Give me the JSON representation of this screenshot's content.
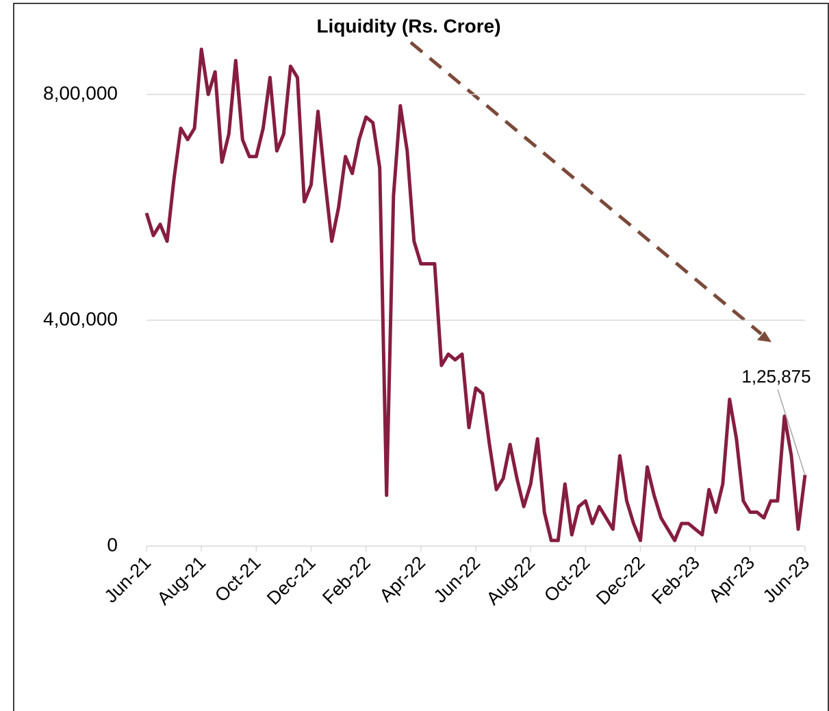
{
  "chart_data": {
    "type": "line",
    "title": "Liquidity (Rs. Crore)",
    "categories": [
      "Jun-21",
      null,
      null,
      null,
      null,
      null,
      null,
      null,
      "Aug-21",
      null,
      null,
      null,
      null,
      null,
      null,
      null,
      "Oct-21",
      null,
      null,
      null,
      null,
      null,
      null,
      null,
      "Dec-21",
      null,
      null,
      null,
      null,
      null,
      null,
      null,
      "Feb-22",
      null,
      null,
      null,
      null,
      null,
      null,
      null,
      "Apr-22",
      null,
      null,
      null,
      null,
      null,
      null,
      null,
      "Jun-22",
      null,
      null,
      null,
      null,
      null,
      null,
      null,
      "Aug-22",
      null,
      null,
      null,
      null,
      null,
      null,
      null,
      "Oct-22",
      null,
      null,
      null,
      null,
      null,
      null,
      null,
      "Dec-22",
      null,
      null,
      null,
      null,
      null,
      null,
      null,
      "Feb-23",
      null,
      null,
      null,
      null,
      null,
      null,
      null,
      "Apr-23",
      null,
      null,
      null,
      null,
      null,
      null,
      null,
      "Jun-23"
    ],
    "series": [
      {
        "name": "Liquidity",
        "color": "#861d41",
        "values": [
          590000,
          550000,
          570000,
          540000,
          650000,
          740000,
          720000,
          740000,
          880000,
          800000,
          840000,
          680000,
          730000,
          860000,
          720000,
          690000,
          690000,
          740000,
          830000,
          700000,
          730000,
          850000,
          830000,
          610000,
          640000,
          770000,
          650000,
          540000,
          600000,
          690000,
          660000,
          720000,
          760000,
          750000,
          670000,
          90000,
          620000,
          780000,
          700000,
          540000,
          500000,
          500000,
          500000,
          320000,
          340000,
          330000,
          340000,
          210000,
          280000,
          270000,
          180000,
          100000,
          120000,
          180000,
          120000,
          70000,
          110000,
          190000,
          60000,
          10000,
          10000,
          110000,
          20000,
          70000,
          80000,
          40000,
          70000,
          50000,
          30000,
          160000,
          80000,
          40000,
          10000,
          140000,
          90000,
          50000,
          30000,
          10000,
          40000,
          40000,
          30000,
          20000,
          100000,
          60000,
          110000,
          260000,
          190000,
          80000,
          60000,
          60000,
          50000,
          80000,
          80000,
          230000,
          160000,
          30000,
          125875
        ],
        "value_labels": [
          null,
          null,
          null,
          null,
          null,
          null,
          null,
          null,
          null,
          null,
          null,
          null,
          null,
          null,
          null,
          null,
          null,
          null,
          null,
          null,
          null,
          null,
          null,
          null,
          null,
          null,
          null,
          null,
          null,
          null,
          null,
          null,
          null,
          null,
          null,
          null,
          null,
          null,
          null,
          null,
          null,
          null,
          null,
          null,
          null,
          null,
          null,
          null,
          null,
          null,
          null,
          null,
          null,
          null,
          null,
          null,
          null,
          null,
          null,
          null,
          null,
          null,
          null,
          null,
          null,
          null,
          null,
          null,
          null,
          null,
          null,
          null,
          null,
          null,
          null,
          null,
          null,
          null,
          null,
          null,
          null,
          null,
          null,
          null,
          null,
          null,
          null,
          null,
          null,
          null,
          null,
          null,
          null,
          null,
          null,
          null,
          "1,25,875"
        ]
      }
    ],
    "ylim": [
      0,
      900000
    ],
    "yticks": [
      0,
      {
        "value": 400000,
        "label": "4,00,000"
      },
      {
        "value": 800000,
        "label": "8,00,000"
      }
    ],
    "grid": true
  }
}
